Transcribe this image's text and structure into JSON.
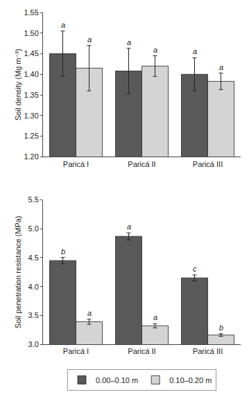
{
  "chart_data": [
    {
      "type": "bar",
      "categories": [
        "Paricá I",
        "Paricá II",
        "Paricá III"
      ],
      "ylabel": "Soil density (Mg m⁻³)",
      "ylim": [
        1.2,
        1.55
      ],
      "yticks": [
        {
          "value": 1.2,
          "label": "1.20"
        },
        1.25,
        {
          "value": 1.3,
          "label": "1.30"
        },
        1.35,
        {
          "value": 1.4,
          "label": "1.40"
        },
        1.45,
        {
          "value": 1.5,
          "label": "1.50"
        },
        1.55
      ],
      "grid": false,
      "series": [
        {
          "name": "0.00–0.10 m",
          "color": "#595959",
          "values": [
            1.45,
            1.408,
            1.4
          ],
          "errors": [
            0.055,
            0.055,
            0.04
          ],
          "letters": [
            "a",
            "a",
            "a"
          ]
        },
        {
          "name": "0.10–0.20 m",
          "color": "#d4d4d4",
          "values": [
            1.415,
            1.42,
            1.383
          ],
          "errors": [
            0.055,
            0.025,
            0.02
          ],
          "letters": [
            "a",
            "a",
            "a"
          ]
        }
      ]
    },
    {
      "type": "bar",
      "categories": [
        "Paricá I",
        "Paricá II",
        "Paricá III"
      ],
      "ylabel": "Soil penetration resistance (MPa)",
      "ylim": [
        3.0,
        5.5
      ],
      "yticks": [
        {
          "value": 3.0,
          "label": "3.0"
        },
        3.5,
        {
          "value": 4.0,
          "label": "4.0"
        },
        4.5,
        {
          "value": 5.0,
          "label": "5.0"
        },
        5.5
      ],
      "grid": false,
      "legend": "bottom",
      "series": [
        {
          "name": "0.00–0.10 m",
          "color": "#595959",
          "values": [
            4.45,
            4.87,
            4.15
          ],
          "errors": [
            0.055,
            0.06,
            0.05
          ],
          "letters": [
            "b",
            "a",
            "c"
          ]
        },
        {
          "name": "0.10–0.20 m",
          "color": "#d4d4d4",
          "values": [
            3.39,
            3.32,
            3.16
          ],
          "errors": [
            0.045,
            0.035,
            0.022
          ],
          "letters": [
            "a",
            "a",
            "b"
          ]
        }
      ]
    }
  ]
}
